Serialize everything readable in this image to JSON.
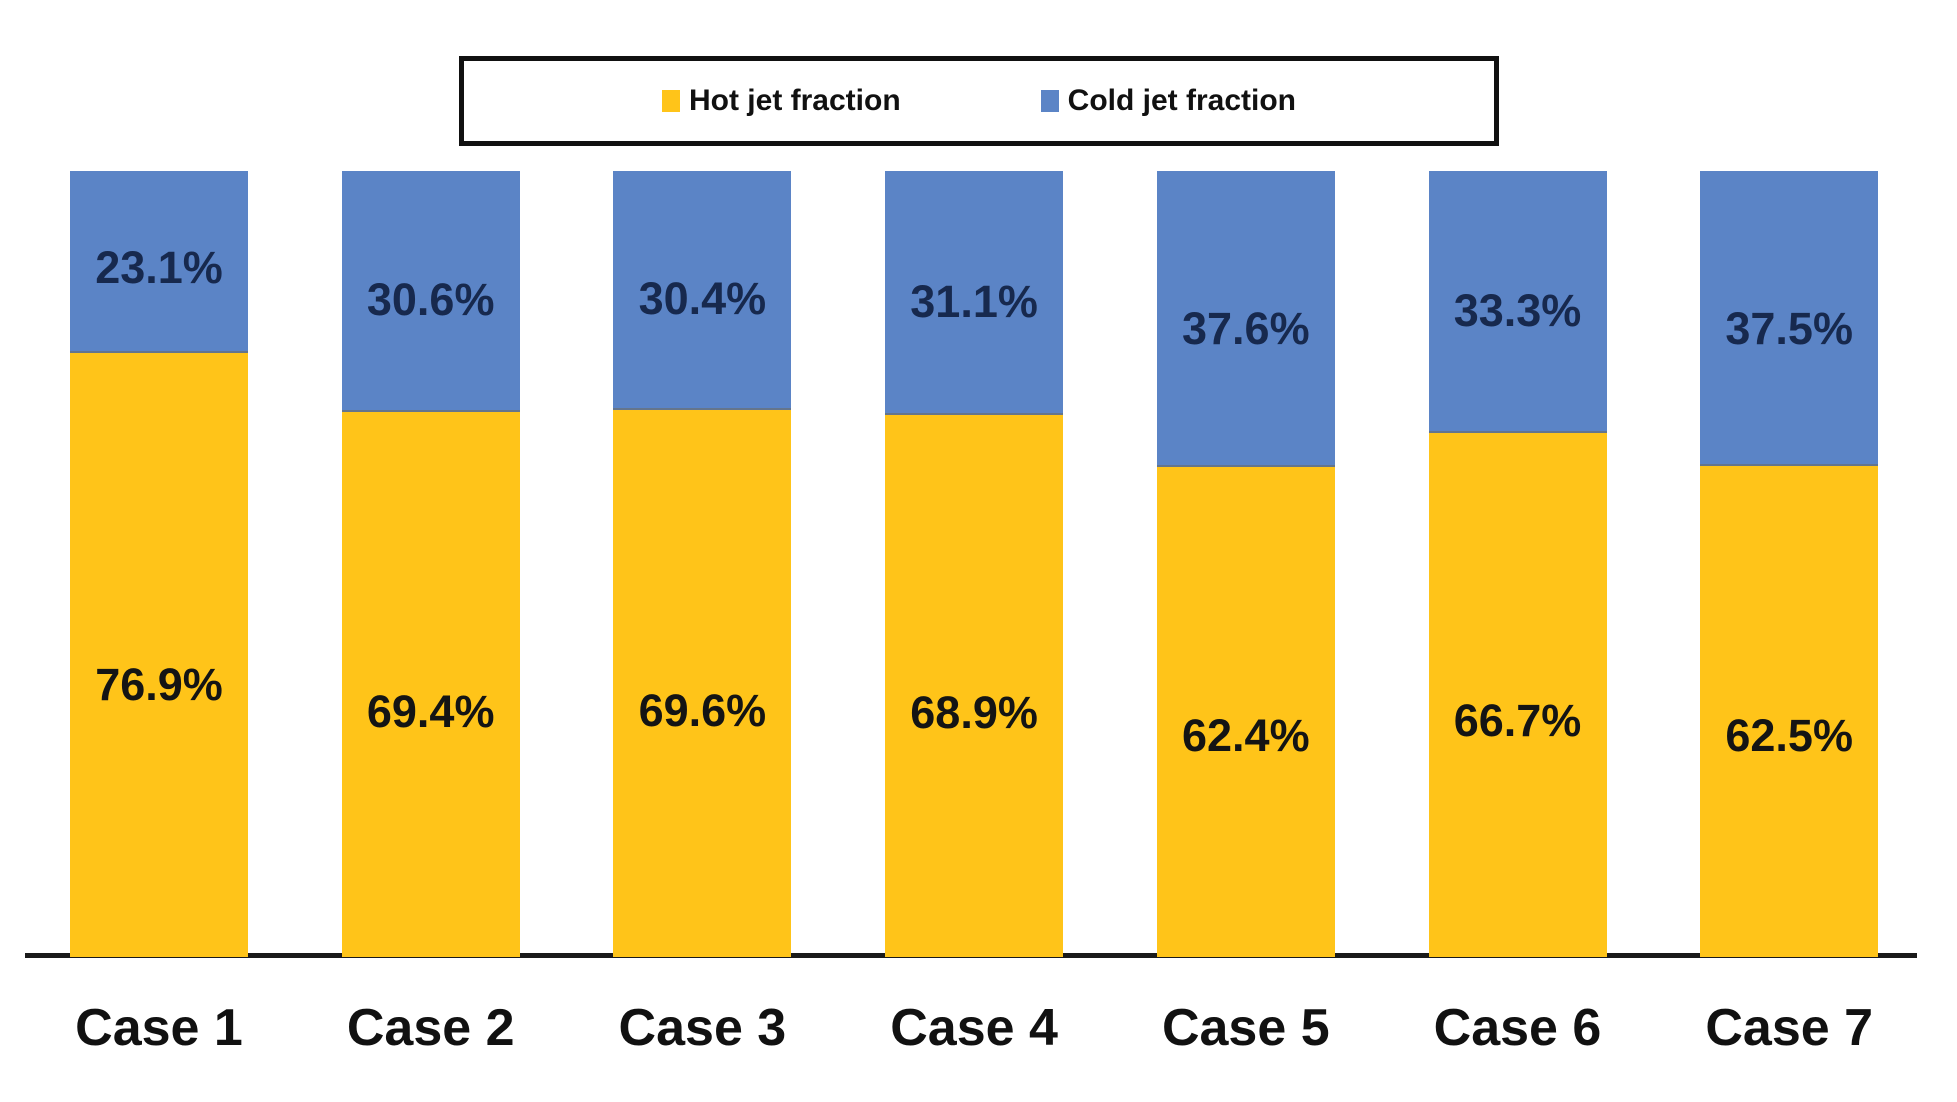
{
  "chart_data": {
    "type": "bar",
    "stacked": true,
    "orientation": "vertical",
    "categories": [
      "Case 1",
      "Case 2",
      "Case 3",
      "Case 4",
      "Case 5",
      "Case 6",
      "Case 7"
    ],
    "series": [
      {
        "name": "Hot jet fraction",
        "color": "#FFC419",
        "values": [
          76.9,
          69.4,
          69.6,
          68.9,
          62.4,
          66.7,
          62.5
        ]
      },
      {
        "name": "Cold jet fraction",
        "color": "#5B84C6",
        "values": [
          23.1,
          30.6,
          30.4,
          31.1,
          37.6,
          33.3,
          37.5
        ]
      }
    ],
    "value_labels": {
      "hot": [
        "76.9%",
        "69.4%",
        "69.6%",
        "68.9%",
        "62.4%",
        "66.7%",
        "62.5%"
      ],
      "cold": [
        "23.1%",
        "30.6%",
        "30.4%",
        "31.1%",
        "37.6%",
        "33.3%",
        "37.5%"
      ]
    },
    "title": "",
    "xlabel": "",
    "ylabel": "",
    "ylim": [
      0,
      100
    ],
    "grid": false,
    "legend_position": "top"
  },
  "legend": {
    "items": [
      {
        "label": "Hot jet fraction",
        "color": "#FFC419"
      },
      {
        "label": "Cold jet fraction",
        "color": "#5B84C6"
      }
    ]
  },
  "colors": {
    "hot_segment": "#FFC419",
    "cold_segment": "#5B84C6",
    "hot_label_text": "#141414",
    "cold_label_text": "#17294E",
    "axis_line": "#1a1a1a",
    "background": "#ffffff"
  }
}
